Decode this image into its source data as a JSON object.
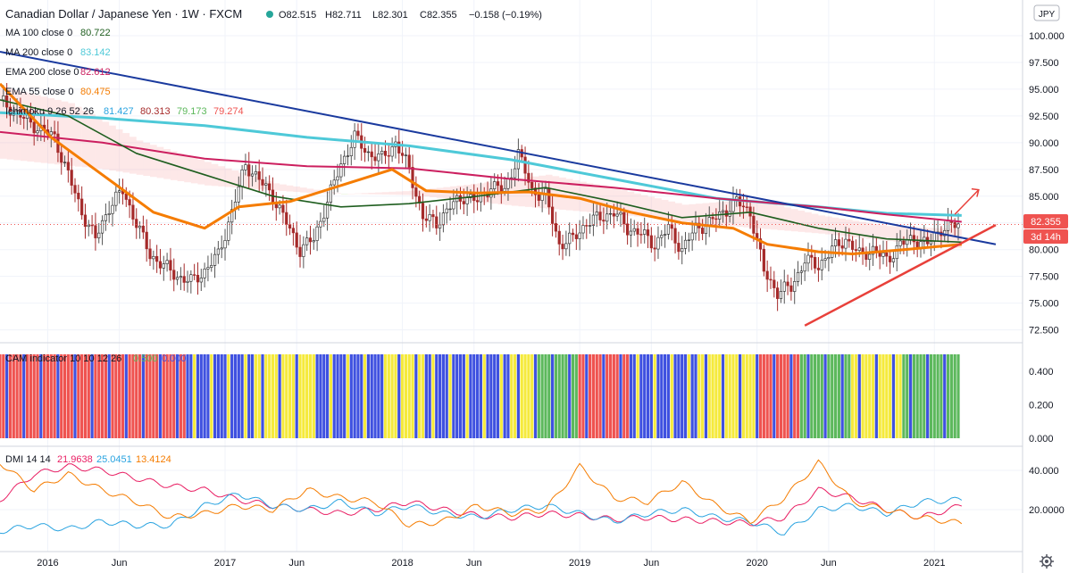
{
  "header": {
    "symbol": "Canadian Dollar / Japanese Yen · 1W · FXCM",
    "open": "O82.515",
    "high": "H82.711",
    "low": "L82.301",
    "close": "C82.355",
    "change": "−0.158 (−0.19%)"
  },
  "currency_label": "JPY",
  "price_badge": "82.355",
  "countdown_badge": "3d 14h",
  "colors": {
    "ma100": "#1f5e1f",
    "ma200": "#4ec9d8",
    "ema200": "#cc1f5f",
    "ema55": "#f57c00",
    "downtrend": "#1a3a9e",
    "uptrend": "#e8403a",
    "candle_up": "#26a69a",
    "candle_down": "#a52a2a",
    "cloud_bull": "#8bc34a",
    "cloud_bear": "#f8a5a5",
    "cam_red": "#ef5350",
    "cam_blue": "#3f51e0",
    "cam_yellow": "#f5ea3c",
    "cam_green": "#5cb85c",
    "dmi_plus": "#29a3e0",
    "dmi_minus": "#f57c00",
    "adx": "#e91e63"
  },
  "legend": [
    {
      "label": "MA 100 close 0",
      "value": "80.722",
      "color": "#1f5e1f"
    },
    {
      "label": "MA 200 close 0",
      "value": "83.142",
      "color": "#4ec9d8"
    },
    {
      "label": "EMA 200 close 0",
      "value": "82.612",
      "color": "#cc1f5f"
    },
    {
      "label": "EMA 55 close 0",
      "value": "80.475",
      "color": "#f57c00"
    }
  ],
  "ichimoku": {
    "label": "Ichimoku 9 26 52 26",
    "values": [
      {
        "v": "81.427",
        "color": "#29a3e0"
      },
      {
        "v": "80.313",
        "color": "#a52a2a"
      },
      {
        "v": "79.173",
        "color": "#5cb85c"
      },
      {
        "v": "79.274",
        "color": "#ef5350"
      }
    ]
  },
  "cam_pane": {
    "label": "CAM indicator 10 10 12 26",
    "v1": "0.500",
    "v2": "0.000"
  },
  "dmi_pane": {
    "label": "DMI 14 14",
    "v1": "21.9638",
    "v2": "25.0451",
    "v3": "13.4124"
  },
  "icons": [
    "settings-gear-icon"
  ],
  "chart_data": [
    {
      "type": "line",
      "name_hint": "price pane",
      "x_ticks": [
        "2016",
        "Jun",
        "2017",
        "Jun",
        "2018",
        "Jun",
        "2019",
        "Jun",
        "2020",
        "Jun",
        "2021"
      ],
      "x_tick_week": [
        14,
        35,
        66,
        87,
        118,
        139,
        170,
        191,
        222,
        243,
        274
      ],
      "x_range_weeks": [
        0,
        292
      ],
      "y_ticks": [
        "100.000",
        "97.500",
        "95.000",
        "92.500",
        "90.000",
        "87.500",
        "85.000",
        "82.500",
        "80.000",
        "77.500",
        "75.000",
        "72.500"
      ],
      "ylim": [
        71.8,
        101.0
      ],
      "series": [
        {
          "id": "price",
          "x": [
            0,
            8,
            16,
            20,
            24,
            28,
            32,
            36,
            40,
            44,
            48,
            52,
            56,
            60,
            64,
            68,
            72,
            76,
            80,
            84,
            88,
            92,
            96,
            100,
            104,
            108,
            112,
            116,
            120,
            124,
            128,
            132,
            136,
            140,
            144,
            148,
            152,
            156,
            160,
            164,
            168,
            172,
            176,
            180,
            184,
            188,
            192,
            196,
            200,
            204,
            208,
            212,
            216,
            220,
            224,
            228,
            232,
            236,
            240,
            244,
            248,
            252,
            256,
            260,
            264,
            268,
            272,
            276,
            282
          ],
          "y": [
            94.0,
            92.0,
            90.5,
            87.0,
            83.5,
            81.0,
            84.0,
            85.5,
            82.5,
            79.5,
            78.5,
            77.5,
            77.0,
            78.0,
            79.5,
            83.5,
            88.0,
            86.5,
            85.0,
            82.5,
            80.0,
            81.0,
            84.5,
            88.0,
            90.5,
            89.0,
            88.5,
            90.0,
            87.5,
            83.0,
            82.5,
            84.0,
            85.0,
            84.5,
            86.0,
            85.5,
            89.0,
            85.5,
            85.0,
            80.5,
            81.0,
            82.5,
            83.0,
            83.5,
            82.0,
            81.5,
            80.5,
            82.0,
            80.0,
            82.0,
            82.5,
            83.5,
            84.5,
            83.5,
            78.0,
            76.0,
            76.5,
            79.0,
            78.5,
            80.0,
            81.0,
            79.5,
            80.0,
            79.0,
            80.5,
            81.0,
            80.5,
            82.0,
            82.4
          ]
        },
        {
          "id": "ma200",
          "x": [
            0,
            30,
            60,
            90,
            120,
            150,
            180,
            210,
            240,
            260,
            282
          ],
          "y": [
            92.8,
            92.3,
            91.6,
            90.5,
            89.7,
            88.4,
            86.6,
            84.8,
            84.0,
            83.4,
            83.2
          ]
        },
        {
          "id": "ema200",
          "x": [
            0,
            30,
            60,
            90,
            120,
            150,
            180,
            210,
            240,
            260,
            282
          ],
          "y": [
            91.0,
            90.0,
            88.5,
            87.8,
            87.6,
            86.6,
            85.8,
            84.8,
            84.0,
            83.3,
            82.6
          ]
        },
        {
          "id": "ma100",
          "x": [
            0,
            20,
            40,
            60,
            80,
            100,
            120,
            140,
            160,
            180,
            200,
            220,
            240,
            260,
            282
          ],
          "y": [
            94.0,
            92.5,
            89.0,
            87.0,
            85.0,
            84.0,
            84.3,
            85.0,
            85.8,
            84.5,
            83.0,
            83.5,
            82.0,
            81.0,
            80.7
          ]
        },
        {
          "id": "ema55",
          "x": [
            0,
            15,
            30,
            45,
            60,
            70,
            85,
            100,
            115,
            125,
            140,
            155,
            170,
            185,
            200,
            215,
            225,
            240,
            250,
            265,
            282
          ],
          "y": [
            95.5,
            90.5,
            87.0,
            83.5,
            82.0,
            84.0,
            84.5,
            86.0,
            87.5,
            85.5,
            85.3,
            85.4,
            84.8,
            83.5,
            82.5,
            82.0,
            80.5,
            79.8,
            79.6,
            80.0,
            80.5
          ]
        },
        {
          "id": "downtrend_line",
          "x": [
            0,
            292
          ],
          "y": [
            98.5,
            80.5
          ]
        },
        {
          "id": "uptrend_line",
          "x": [
            236,
            292
          ],
          "y": [
            72.9,
            82.3
          ]
        },
        {
          "id": "arrow",
          "x": [
            280,
            287
          ],
          "y": [
            83.3,
            85.6
          ]
        }
      ]
    },
    {
      "type": "bar",
      "name_hint": "CAM indicator pane",
      "y_ticks": [
        "0.400",
        "0.200",
        "0.000"
      ],
      "ylim": [
        0.0,
        0.5
      ],
      "value": 0.5,
      "segments": [
        {
          "from_week": 0,
          "to_week": 55,
          "color": "red"
        },
        {
          "from_week": 55,
          "to_week": 75,
          "color": "blue"
        },
        {
          "from_week": 75,
          "to_week": 92,
          "color": "yellow"
        },
        {
          "from_week": 92,
          "to_week": 112,
          "color": "blue"
        },
        {
          "from_week": 112,
          "to_week": 125,
          "color": "yellow"
        },
        {
          "from_week": 125,
          "to_week": 150,
          "color": "blue"
        },
        {
          "from_week": 150,
          "to_week": 158,
          "color": "yellow"
        },
        {
          "from_week": 158,
          "to_week": 170,
          "color": "green"
        },
        {
          "from_week": 170,
          "to_week": 185,
          "color": "red"
        },
        {
          "from_week": 185,
          "to_week": 205,
          "color": "blue"
        },
        {
          "from_week": 205,
          "to_week": 222,
          "color": "yellow"
        },
        {
          "from_week": 222,
          "to_week": 235,
          "color": "red"
        },
        {
          "from_week": 235,
          "to_week": 250,
          "color": "green"
        },
        {
          "from_week": 250,
          "to_week": 265,
          "color": "yellow"
        },
        {
          "from_week": 265,
          "to_week": 282,
          "color": "green"
        }
      ]
    },
    {
      "type": "line",
      "name_hint": "DMI pane",
      "y_ticks": [
        "40.000",
        "20.0000"
      ],
      "ylim": [
        0,
        50
      ],
      "series": [
        {
          "id": "adx",
          "x": [
            0,
            10,
            20,
            30,
            40,
            50,
            60,
            70,
            80,
            90,
            100,
            110,
            120,
            130,
            140,
            150,
            160,
            170,
            180,
            190,
            200,
            210,
            220,
            230,
            240,
            250,
            260,
            270,
            282
          ],
          "y": [
            25,
            38,
            42,
            40,
            36,
            32,
            30,
            25,
            22,
            20,
            18,
            20,
            24,
            20,
            17,
            16,
            18,
            17,
            15,
            16,
            15,
            14,
            13,
            16,
            30,
            26,
            20,
            16,
            22
          ]
        },
        {
          "id": "dmi_plus",
          "x": [
            0,
            10,
            20,
            30,
            40,
            50,
            60,
            70,
            80,
            90,
            100,
            110,
            120,
            130,
            140,
            150,
            160,
            170,
            180,
            190,
            200,
            210,
            220,
            230,
            240,
            250,
            260,
            270,
            282
          ],
          "y": [
            9,
            12,
            10,
            14,
            12,
            12,
            22,
            28,
            22,
            20,
            24,
            18,
            22,
            18,
            16,
            20,
            22,
            18,
            14,
            18,
            20,
            16,
            14,
            8,
            20,
            22,
            18,
            24,
            25
          ]
        },
        {
          "id": "dmi_minus",
          "x": [
            0,
            10,
            20,
            30,
            40,
            50,
            60,
            70,
            80,
            90,
            100,
            110,
            120,
            130,
            140,
            150,
            160,
            170,
            180,
            190,
            200,
            210,
            220,
            230,
            240,
            250,
            260,
            270,
            282
          ],
          "y": [
            44,
            30,
            38,
            30,
            24,
            16,
            18,
            22,
            20,
            30,
            26,
            24,
            12,
            14,
            22,
            18,
            20,
            42,
            26,
            24,
            34,
            22,
            14,
            26,
            44,
            24,
            20,
            16,
            13
          ]
        }
      ]
    }
  ]
}
